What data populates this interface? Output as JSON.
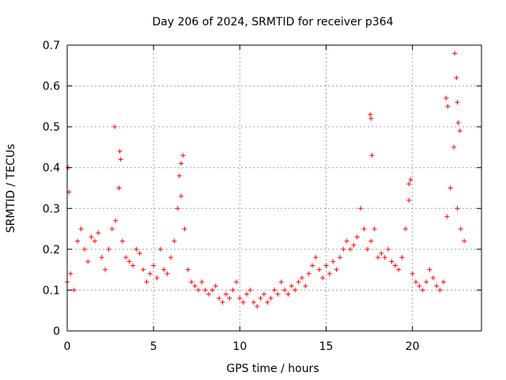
{
  "chart_data": {
    "type": "scatter",
    "title": "Day 206 of 2024, SRMTID for receiver p364",
    "xlabel": "GPS time / hours",
    "ylabel": "SRMTID / TECUs",
    "xlim": [
      0,
      24
    ],
    "ylim": [
      0,
      0.7
    ],
    "grid": true,
    "marker": "+",
    "colors": {
      "marker": "#ff0000",
      "grid": "#a0a0a0",
      "axis": "#000000"
    },
    "xticks": [
      0,
      5,
      10,
      15,
      20
    ],
    "xtick_labels": [
      "0",
      "5",
      "10",
      "15",
      "20"
    ],
    "yticks": [
      0,
      0.1,
      0.2,
      0.3,
      0.4,
      0.5,
      0.6,
      0.7
    ],
    "ytick_labels": [
      "0",
      "0.1",
      "0.2",
      "0.3",
      "0.4",
      "0.5",
      "0.6",
      "0.7"
    ],
    "series": [
      {
        "name": "SRMTID",
        "x": [
          0.0,
          0.2,
          0.4,
          0.6,
          0.8,
          1.0,
          1.2,
          1.4,
          1.6,
          1.8,
          2.0,
          2.2,
          2.4,
          2.6,
          2.8,
          3.0,
          3.2,
          3.4,
          3.6,
          3.8,
          4.0,
          4.2,
          4.4,
          4.6,
          4.8,
          5.0,
          5.2,
          5.4,
          5.6,
          5.8,
          6.0,
          6.2,
          6.4,
          6.6,
          6.8,
          7.0,
          7.2,
          7.4,
          7.6,
          7.8,
          8.0,
          8.2,
          8.4,
          8.6,
          8.8,
          9.0,
          9.2,
          9.4,
          9.6,
          9.8,
          10.0,
          10.2,
          10.4,
          10.6,
          10.8,
          11.0,
          11.2,
          11.4,
          11.6,
          11.8,
          12.0,
          12.2,
          12.4,
          12.6,
          12.8,
          13.0,
          13.2,
          13.4,
          13.6,
          13.8,
          14.0,
          14.2,
          14.4,
          14.6,
          14.8,
          15.0,
          15.2,
          15.4,
          15.6,
          15.8,
          16.0,
          16.2,
          16.4,
          16.6,
          16.8,
          17.0,
          17.2,
          17.4,
          17.6,
          17.8,
          18.0,
          18.2,
          18.4,
          18.6,
          18.8,
          19.0,
          19.2,
          19.4,
          19.6,
          19.8,
          20.0,
          20.2,
          20.4,
          20.6,
          20.8,
          21.0,
          21.2,
          21.4,
          21.6,
          21.8,
          22.0,
          22.2,
          22.4,
          22.6,
          22.8,
          23.0,
          0.05,
          0.1,
          2.75,
          3.05,
          3.1,
          6.5,
          6.6,
          6.7,
          17.55,
          17.6,
          17.65,
          19.8,
          19.9,
          21.95,
          22.05,
          22.45,
          22.55,
          22.6,
          22.65,
          22.75
        ],
        "y": [
          0.12,
          0.14,
          0.1,
          0.22,
          0.25,
          0.2,
          0.17,
          0.23,
          0.22,
          0.24,
          0.18,
          0.15,
          0.2,
          0.25,
          0.27,
          0.35,
          0.22,
          0.18,
          0.17,
          0.16,
          0.2,
          0.19,
          0.15,
          0.12,
          0.14,
          0.16,
          0.13,
          0.2,
          0.15,
          0.14,
          0.18,
          0.22,
          0.3,
          0.33,
          0.25,
          0.15,
          0.12,
          0.11,
          0.1,
          0.12,
          0.1,
          0.09,
          0.1,
          0.11,
          0.08,
          0.07,
          0.09,
          0.08,
          0.1,
          0.12,
          0.08,
          0.07,
          0.09,
          0.1,
          0.07,
          0.06,
          0.08,
          0.09,
          0.07,
          0.08,
          0.1,
          0.09,
          0.12,
          0.1,
          0.09,
          0.11,
          0.1,
          0.12,
          0.13,
          0.11,
          0.14,
          0.16,
          0.18,
          0.15,
          0.13,
          0.16,
          0.14,
          0.17,
          0.15,
          0.18,
          0.2,
          0.22,
          0.2,
          0.21,
          0.23,
          0.3,
          0.25,
          0.2,
          0.22,
          0.25,
          0.18,
          0.19,
          0.18,
          0.2,
          0.17,
          0.16,
          0.15,
          0.18,
          0.25,
          0.32,
          0.14,
          0.12,
          0.11,
          0.1,
          0.12,
          0.15,
          0.13,
          0.11,
          0.1,
          0.12,
          0.28,
          0.35,
          0.45,
          0.3,
          0.25,
          0.22,
          0.4,
          0.34,
          0.5,
          0.44,
          0.42,
          0.38,
          0.41,
          0.43,
          0.53,
          0.52,
          0.43,
          0.36,
          0.37,
          0.57,
          0.55,
          0.68,
          0.62,
          0.56,
          0.51,
          0.49
        ]
      }
    ]
  }
}
